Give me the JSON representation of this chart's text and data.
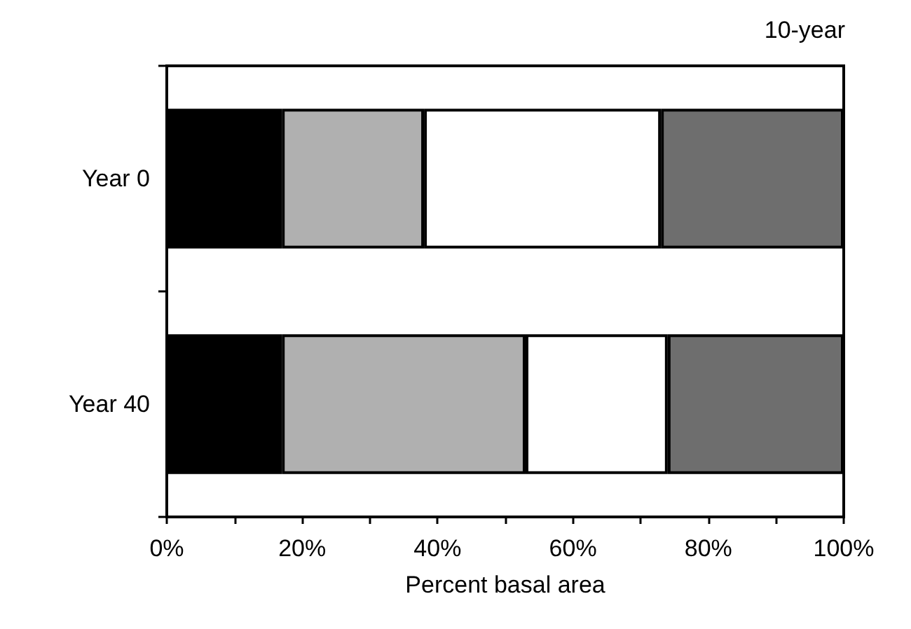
{
  "chart_data": {
    "type": "bar",
    "orientation": "horizontal",
    "stacked": true,
    "title": "10-year",
    "xlabel": "Percent basal area",
    "categories": [
      "Year 0",
      "Year 40"
    ],
    "series": [
      {
        "color": "#000000",
        "values": [
          17,
          17
        ]
      },
      {
        "color": "#b0b0b0",
        "values": [
          21,
          36
        ]
      },
      {
        "color": "#ffffff",
        "values": [
          35,
          21
        ]
      },
      {
        "color": "#6e6e6e",
        "values": [
          27,
          26
        ]
      }
    ],
    "xlim": [
      0,
      100
    ],
    "xticks": [
      {
        "value": 0,
        "label": "0%"
      },
      {
        "value": 10,
        "label": null
      },
      {
        "value": 20,
        "label": "20%"
      },
      {
        "value": 30,
        "label": null
      },
      {
        "value": 40,
        "label": "40%"
      },
      {
        "value": 50,
        "label": null
      },
      {
        "value": 60,
        "label": "60%"
      },
      {
        "value": 70,
        "label": null
      },
      {
        "value": 80,
        "label": "80%"
      },
      {
        "value": 90,
        "label": null
      },
      {
        "value": 100,
        "label": "100%"
      }
    ],
    "grid": false
  }
}
